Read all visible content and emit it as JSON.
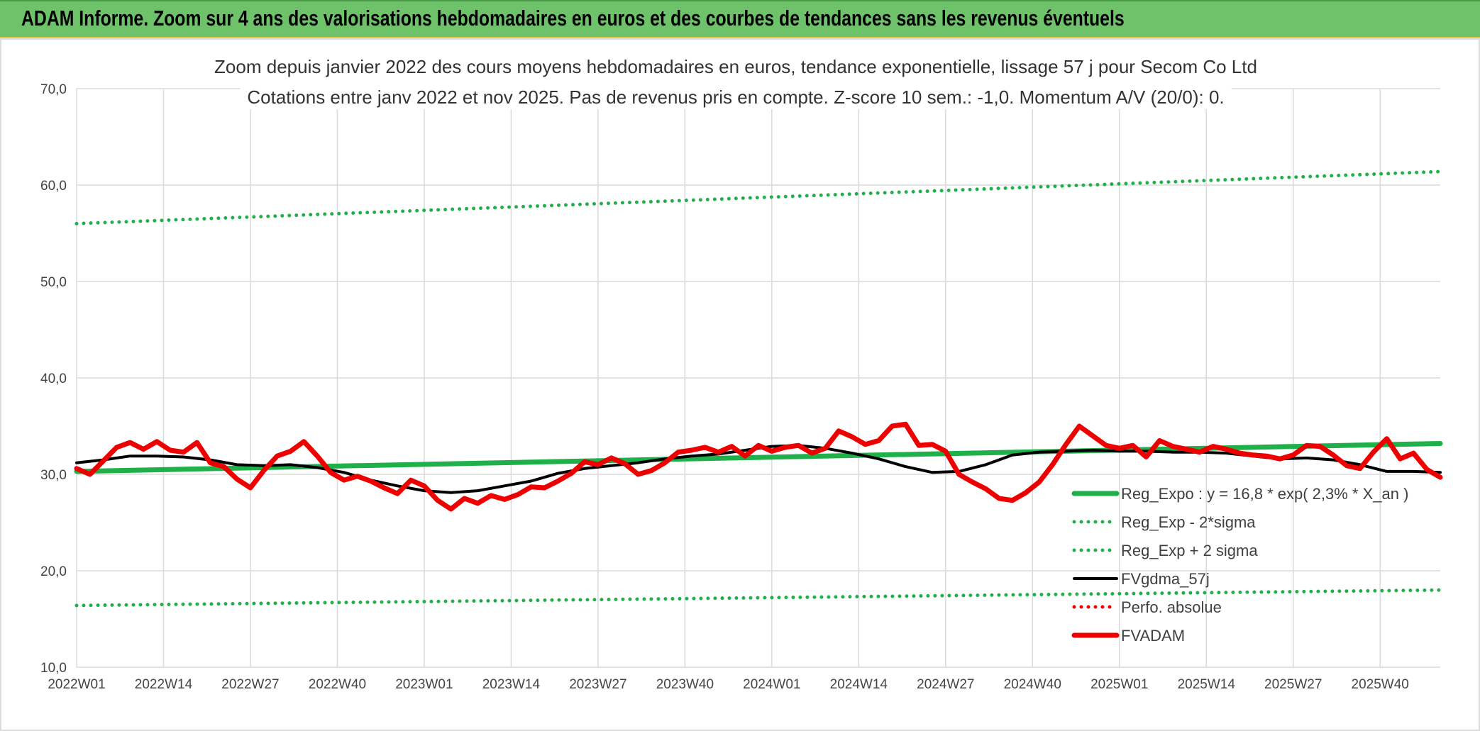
{
  "banner": {
    "title": "ADAM Informe. Zoom sur 4 ans des valorisations hebdomadaires en euros et des courbes de tendances sans les revenus éventuels"
  },
  "colors": {
    "banner_bg": "#6dc26a",
    "trend_green": "#1fb04a",
    "fvgdma_black": "#000000",
    "fvadam_red": "#ee0000",
    "grid": "#dadada"
  },
  "chart_data": {
    "type": "line",
    "title_lines": [
      "Zoom depuis janvier 2022 des cours moyens hebdomadaires en euros, tendance exponentielle, lissage 57 j pour Secom Co Ltd",
      "Cotations entre janv 2022 et nov 2025. Pas de revenus pris en compte. Z-score 10 sem.: -1,0. Momentum A/V (20/0): 0."
    ],
    "xlabel": "",
    "ylabel": "",
    "ylim": [
      10,
      70
    ],
    "yticks": [
      "10,0",
      "20,0",
      "30,0",
      "40,0",
      "50,0",
      "60,0",
      "70,0"
    ],
    "ytick_values": [
      10,
      20,
      30,
      40,
      50,
      60,
      70
    ],
    "x_range": [
      0,
      204
    ],
    "x_ticks": [
      {
        "pos": 0,
        "label": "2022W01"
      },
      {
        "pos": 13,
        "label": "2022W14"
      },
      {
        "pos": 26,
        "label": "2022W27"
      },
      {
        "pos": 39,
        "label": "2022W40"
      },
      {
        "pos": 52,
        "label": "2023W01"
      },
      {
        "pos": 65,
        "label": "2023W14"
      },
      {
        "pos": 78,
        "label": "2023W27"
      },
      {
        "pos": 91,
        "label": "2023W40"
      },
      {
        "pos": 104,
        "label": "2024W01"
      },
      {
        "pos": 117,
        "label": "2024W14"
      },
      {
        "pos": 130,
        "label": "2024W27"
      },
      {
        "pos": 143,
        "label": "2024W40"
      },
      {
        "pos": 156,
        "label": "2025W01"
      },
      {
        "pos": 169,
        "label": "2025W14"
      },
      {
        "pos": 182,
        "label": "2025W27"
      },
      {
        "pos": 195,
        "label": "2025W40"
      }
    ],
    "grid": true,
    "legend_position": "bottom-right",
    "series": [
      {
        "name": "Reg_Expo : y = 16,8 * exp( 2,3% *  X_an )",
        "style": "solid-thick",
        "color": "#1fb04a",
        "x": [
          0,
          204
        ],
        "y": [
          30.3,
          33.2
        ]
      },
      {
        "name": "Reg_Exp - 2*sigma",
        "style": "dotted",
        "color": "#1fb04a",
        "x": [
          0,
          204
        ],
        "y": [
          16.4,
          18.0
        ]
      },
      {
        "name": "Reg_Exp + 2 sigma",
        "style": "dotted",
        "color": "#1fb04a",
        "x": [
          0,
          204
        ],
        "y": [
          56.0,
          61.4
        ]
      },
      {
        "name": "FVgdma_57j",
        "style": "solid",
        "color": "#000000",
        "x": [
          0,
          4,
          8,
          12,
          16,
          20,
          24,
          28,
          32,
          36,
          40,
          44,
          48,
          52,
          56,
          60,
          64,
          68,
          72,
          76,
          80,
          84,
          88,
          92,
          96,
          100,
          104,
          108,
          112,
          116,
          120,
          124,
          128,
          132,
          136,
          140,
          144,
          148,
          152,
          156,
          160,
          164,
          168,
          172,
          176,
          180,
          184,
          188,
          192,
          196,
          200,
          204
        ],
        "y": [
          31.2,
          31.5,
          31.9,
          31.9,
          31.8,
          31.5,
          31.0,
          30.9,
          31.0,
          30.7,
          30.2,
          29.4,
          28.8,
          28.3,
          28.1,
          28.3,
          28.8,
          29.3,
          30.1,
          30.6,
          30.9,
          31.2,
          31.6,
          31.9,
          32.1,
          32.5,
          32.9,
          33.0,
          32.7,
          32.2,
          31.6,
          30.8,
          30.2,
          30.3,
          31.0,
          32.0,
          32.3,
          32.4,
          32.5,
          32.4,
          32.4,
          32.3,
          32.3,
          32.2,
          31.9,
          31.6,
          31.7,
          31.5,
          31.0,
          30.3,
          30.3,
          30.2
        ]
      },
      {
        "name": "Perfo. absolue",
        "style": "dotted",
        "color": "#ee0000",
        "x": [],
        "y": []
      },
      {
        "name": "FVADAM",
        "style": "solid-thick",
        "color": "#ee0000",
        "x": [
          0,
          2,
          4,
          6,
          8,
          10,
          12,
          14,
          16,
          18,
          20,
          22,
          24,
          26,
          28,
          30,
          32,
          34,
          36,
          38,
          40,
          42,
          44,
          46,
          48,
          50,
          52,
          54,
          56,
          58,
          60,
          62,
          64,
          66,
          68,
          70,
          72,
          74,
          76,
          78,
          80,
          82,
          84,
          86,
          88,
          90,
          92,
          94,
          96,
          98,
          100,
          102,
          104,
          106,
          108,
          110,
          112,
          114,
          116,
          118,
          120,
          122,
          124,
          126,
          128,
          130,
          132,
          134,
          136,
          138,
          140,
          142,
          144,
          146,
          148,
          150,
          152,
          154,
          156,
          158,
          160,
          162,
          164,
          166,
          168,
          170,
          172,
          174,
          176,
          178,
          180,
          182,
          184,
          186,
          188,
          190,
          192,
          194,
          196,
          198,
          200,
          202,
          204
        ],
        "y": [
          30.6,
          30.0,
          31.4,
          32.8,
          33.3,
          32.6,
          33.4,
          32.5,
          32.3,
          33.3,
          31.2,
          30.8,
          29.5,
          28.6,
          30.4,
          31.9,
          32.4,
          33.4,
          31.9,
          30.2,
          29.4,
          29.8,
          29.3,
          28.6,
          28.0,
          29.4,
          28.8,
          27.3,
          26.4,
          27.5,
          27.0,
          27.8,
          27.4,
          27.9,
          28.7,
          28.6,
          29.3,
          30.1,
          31.3,
          31.0,
          31.7,
          31.1,
          30.0,
          30.4,
          31.2,
          32.3,
          32.5,
          32.8,
          32.3,
          32.9,
          31.9,
          33.0,
          32.4,
          32.8,
          33.0,
          32.2,
          32.7,
          34.5,
          33.9,
          33.1,
          33.5,
          35.0,
          35.2,
          33.0,
          33.1,
          32.4,
          30.0,
          29.2,
          28.5,
          27.5,
          27.3,
          28.1,
          29.2,
          31.0,
          33.1,
          35.0,
          34.0,
          33.0,
          32.7,
          33.0,
          31.8,
          33.5,
          32.9,
          32.6,
          32.3,
          32.9,
          32.6,
          32.2,
          32.0,
          31.9,
          31.6,
          32.0,
          33.0,
          32.9,
          32.0,
          30.9,
          30.6,
          32.3,
          33.7,
          31.6,
          32.2,
          30.5,
          29.7
        ]
      }
    ]
  }
}
